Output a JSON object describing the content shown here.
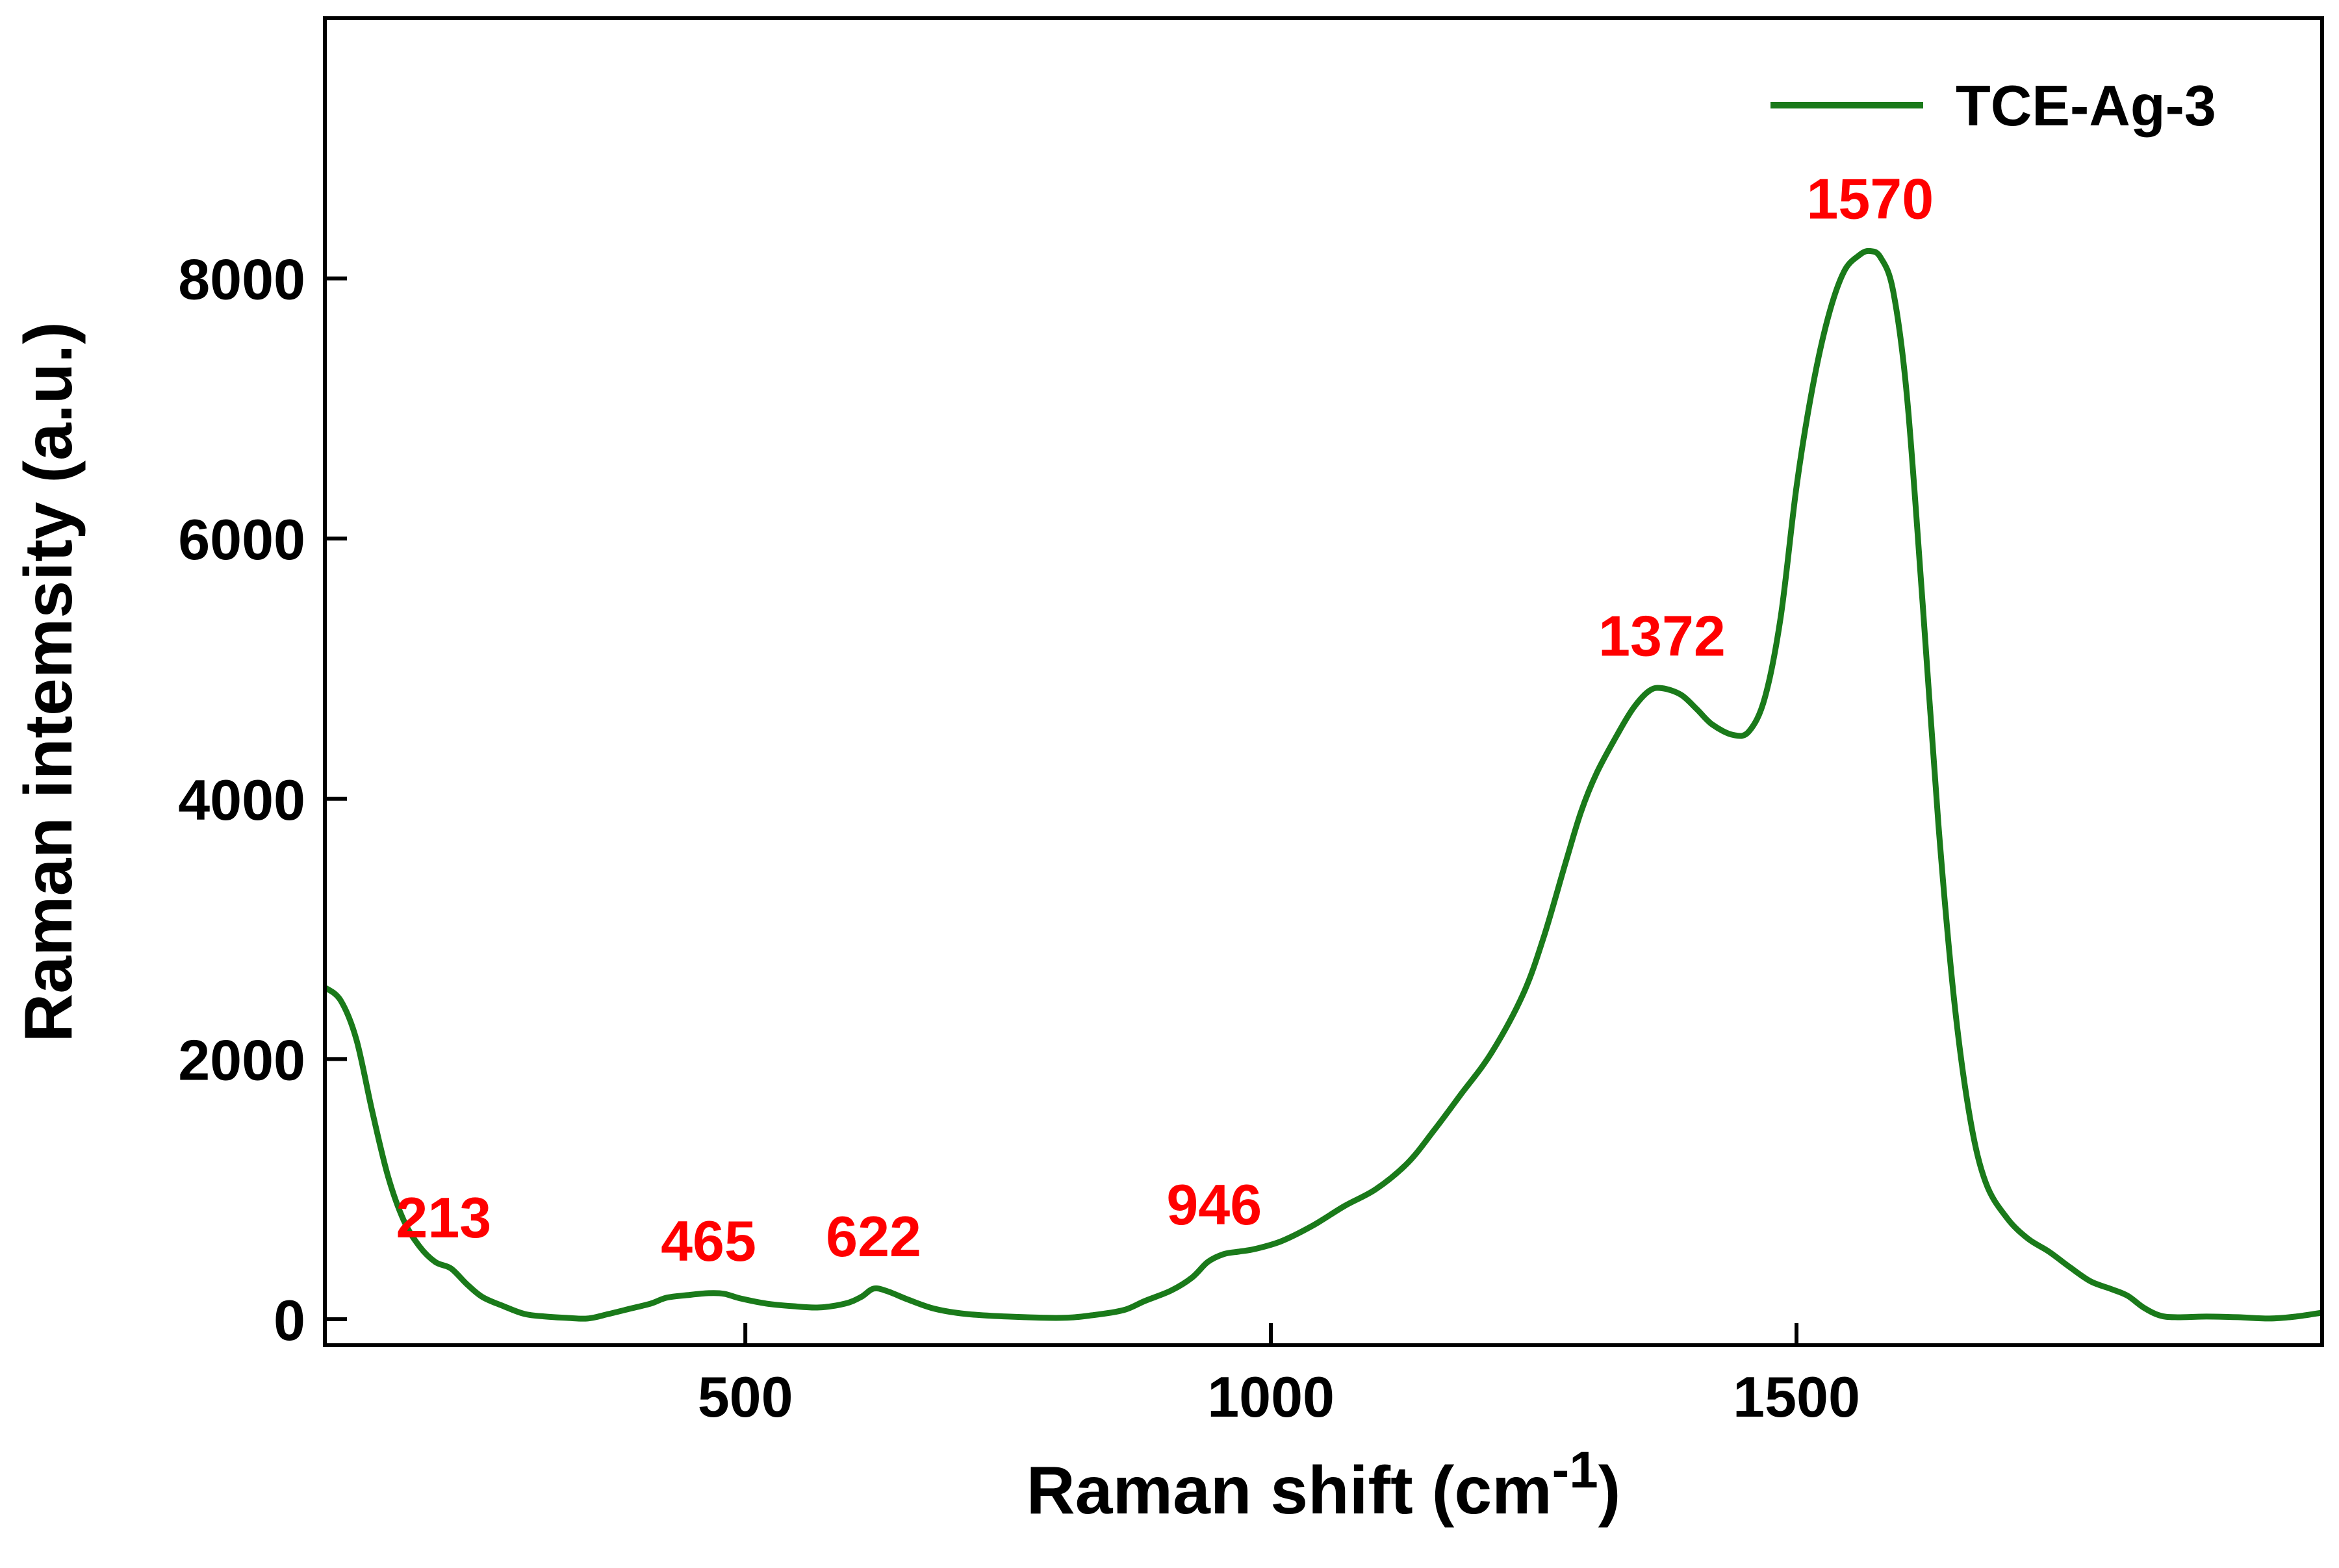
{
  "chart_data": {
    "type": "line",
    "xlabel": "Raman shift (cm",
    "xlabel_superscript": "-1",
    "xlabel_suffix": ")",
    "ylabel": "Raman intemsity (a.u.)",
    "xlim": [
      100,
      2000
    ],
    "ylim": [
      -200,
      10000
    ],
    "xticks": [
      500,
      1000,
      1500
    ],
    "yticks": [
      0,
      2000,
      4000,
      6000,
      8000
    ],
    "xtick_labels": [
      "500",
      "1000",
      "1500"
    ],
    "ytick_labels": [
      "0",
      "2000",
      "4000",
      "6000",
      "8000"
    ],
    "legend_position": "top-right",
    "series": [
      {
        "name": "TCE-Ag-3",
        "color": "#1a7a1a",
        "points": [
          [
            100,
            2550
          ],
          [
            115,
            2450
          ],
          [
            130,
            2150
          ],
          [
            145,
            1600
          ],
          [
            160,
            1100
          ],
          [
            175,
            760
          ],
          [
            190,
            560
          ],
          [
            205,
            440
          ],
          [
            220,
            390
          ],
          [
            235,
            270
          ],
          [
            250,
            170
          ],
          [
            270,
            100
          ],
          [
            290,
            40
          ],
          [
            310,
            20
          ],
          [
            330,
            10
          ],
          [
            350,
            5
          ],
          [
            370,
            40
          ],
          [
            390,
            80
          ],
          [
            410,
            120
          ],
          [
            425,
            165
          ],
          [
            445,
            185
          ],
          [
            465,
            200
          ],
          [
            480,
            195
          ],
          [
            495,
            160
          ],
          [
            520,
            120
          ],
          [
            545,
            100
          ],
          [
            570,
            90
          ],
          [
            595,
            120
          ],
          [
            610,
            170
          ],
          [
            622,
            235
          ],
          [
            635,
            215
          ],
          [
            655,
            150
          ],
          [
            680,
            80
          ],
          [
            710,
            40
          ],
          [
            750,
            20
          ],
          [
            800,
            10
          ],
          [
            830,
            30
          ],
          [
            860,
            70
          ],
          [
            880,
            140
          ],
          [
            905,
            220
          ],
          [
            925,
            320
          ],
          [
            940,
            440
          ],
          [
            955,
            500
          ],
          [
            970,
            520
          ],
          [
            985,
            540
          ],
          [
            1010,
            600
          ],
          [
            1040,
            720
          ],
          [
            1070,
            870
          ],
          [
            1100,
            1000
          ],
          [
            1130,
            1200
          ],
          [
            1155,
            1450
          ],
          [
            1180,
            1720
          ],
          [
            1210,
            2050
          ],
          [
            1240,
            2500
          ],
          [
            1260,
            2950
          ],
          [
            1280,
            3500
          ],
          [
            1295,
            3900
          ],
          [
            1310,
            4200
          ],
          [
            1330,
            4500
          ],
          [
            1345,
            4700
          ],
          [
            1360,
            4830
          ],
          [
            1372,
            4850
          ],
          [
            1390,
            4800
          ],
          [
            1405,
            4690
          ],
          [
            1420,
            4570
          ],
          [
            1440,
            4490
          ],
          [
            1455,
            4520
          ],
          [
            1470,
            4780
          ],
          [
            1485,
            5400
          ],
          [
            1500,
            6400
          ],
          [
            1515,
            7150
          ],
          [
            1530,
            7700
          ],
          [
            1545,
            8050
          ],
          [
            1560,
            8180
          ],
          [
            1570,
            8210
          ],
          [
            1580,
            8160
          ],
          [
            1592,
            7900
          ],
          [
            1605,
            7100
          ],
          [
            1620,
            5500
          ],
          [
            1635,
            3800
          ],
          [
            1650,
            2450
          ],
          [
            1665,
            1550
          ],
          [
            1680,
            1050
          ],
          [
            1700,
            780
          ],
          [
            1720,
            620
          ],
          [
            1740,
            520
          ],
          [
            1760,
            400
          ],
          [
            1780,
            290
          ],
          [
            1800,
            230
          ],
          [
            1815,
            180
          ],
          [
            1830,
            90
          ],
          [
            1845,
            30
          ],
          [
            1860,
            15
          ],
          [
            1890,
            20
          ],
          [
            1920,
            15
          ],
          [
            1950,
            5
          ],
          [
            1975,
            20
          ],
          [
            2000,
            50
          ]
        ]
      }
    ],
    "annotations": [
      {
        "text": "213",
        "x": 213,
        "y": 380,
        "color": "#ff0000"
      },
      {
        "text": "465",
        "x": 465,
        "y": 200,
        "color": "#ff0000"
      },
      {
        "text": "622",
        "x": 622,
        "y": 235,
        "color": "#ff0000"
      },
      {
        "text": "946",
        "x": 946,
        "y": 480,
        "color": "#ff0000"
      },
      {
        "text": "1372",
        "x": 1372,
        "y": 4850,
        "color": "#ff0000"
      },
      {
        "text": "1570",
        "x": 1570,
        "y": 8210,
        "color": "#ff0000"
      }
    ]
  }
}
